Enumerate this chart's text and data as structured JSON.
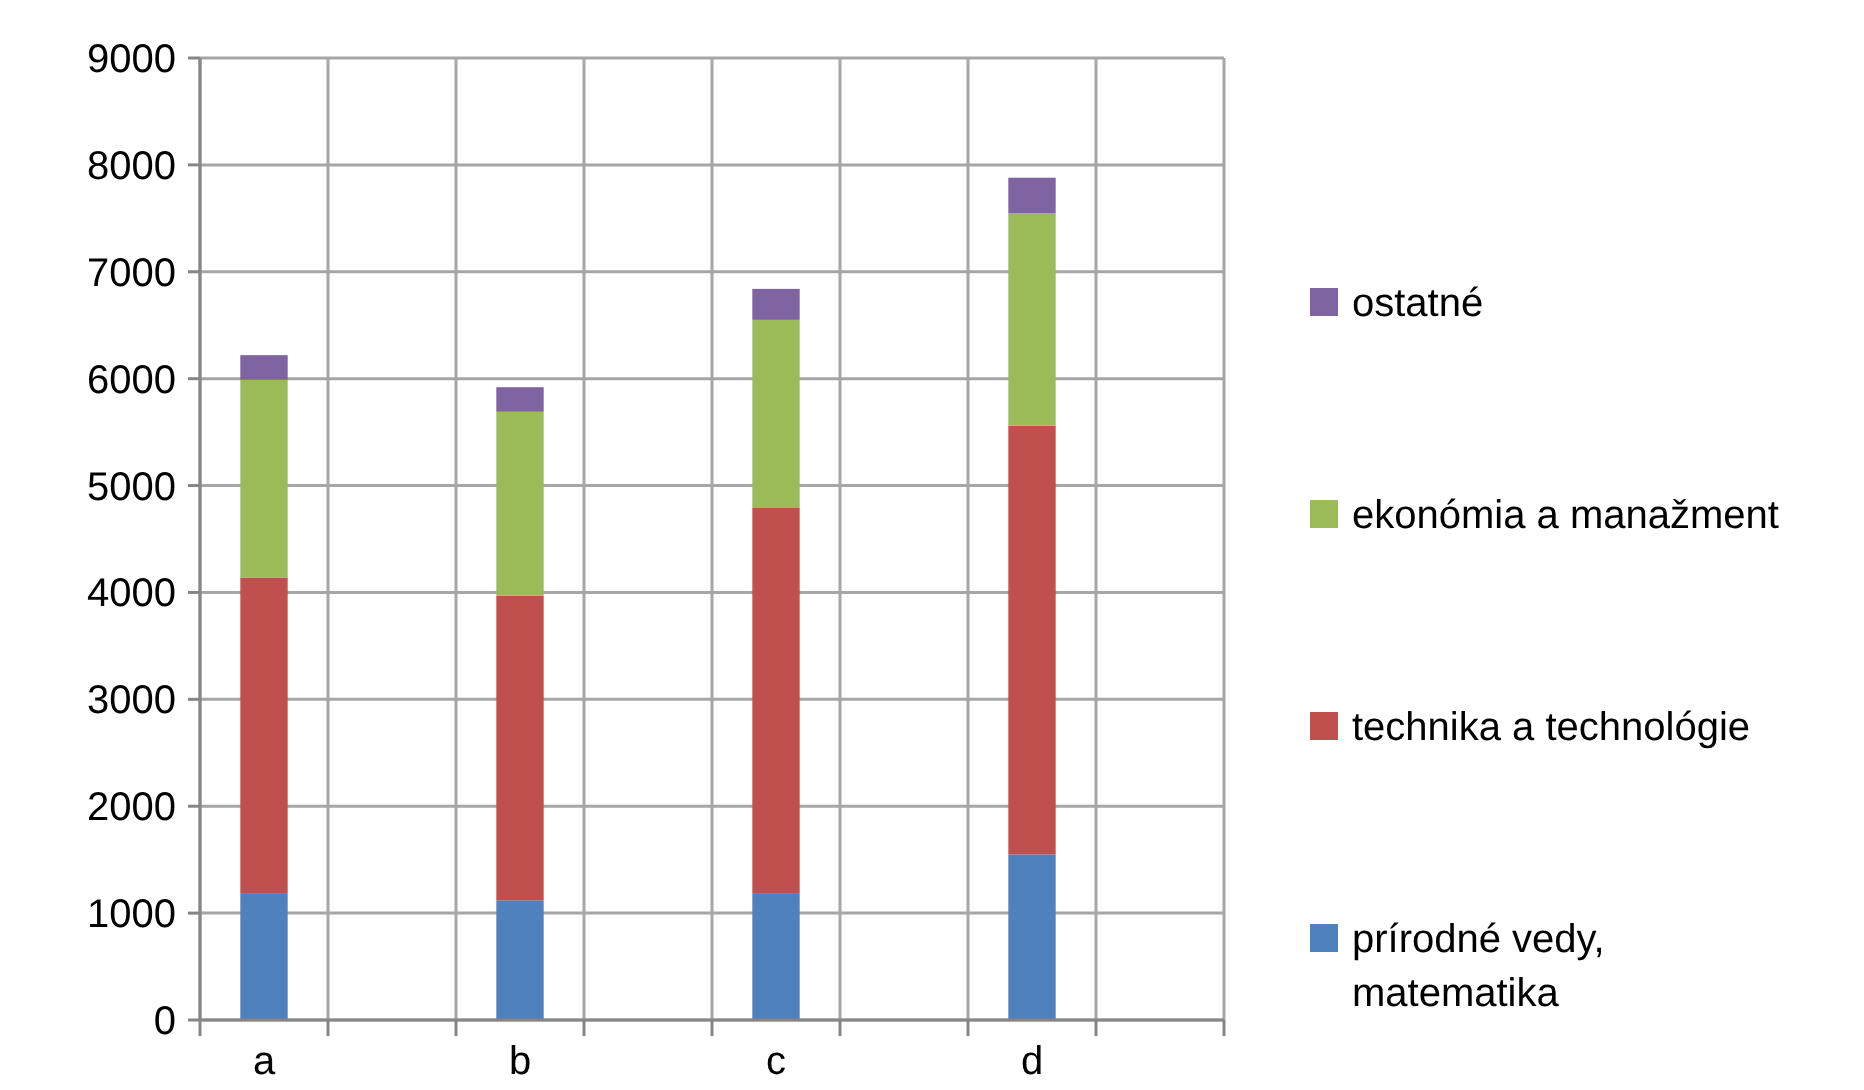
{
  "chart_data": {
    "type": "bar",
    "stacked": true,
    "categories": [
      "a",
      null,
      "b",
      null,
      "c",
      null,
      "d",
      null
    ],
    "series": [
      {
        "name": "prírodné vedy, matematika",
        "color": "#4f81bd",
        "values": [
          1180,
          null,
          1120,
          null,
          1180,
          null,
          1550,
          null
        ]
      },
      {
        "name": "technika a technológie",
        "color": "#c0504d",
        "values": [
          2960,
          null,
          2850,
          null,
          3610,
          null,
          4010,
          null
        ]
      },
      {
        "name": "ekonómia a manažment",
        "color": "#9bbb59",
        "values": [
          1850,
          null,
          1720,
          null,
          1760,
          null,
          1990,
          null
        ]
      },
      {
        "name": "ostatné",
        "color": "#8064a2",
        "values": [
          230,
          null,
          230,
          null,
          290,
          null,
          330,
          null
        ]
      }
    ],
    "ylim": [
      0,
      9000
    ],
    "yticks": [
      0,
      1000,
      2000,
      3000,
      4000,
      5000,
      6000,
      7000,
      8000,
      9000
    ],
    "grid": true,
    "legend": "right"
  }
}
